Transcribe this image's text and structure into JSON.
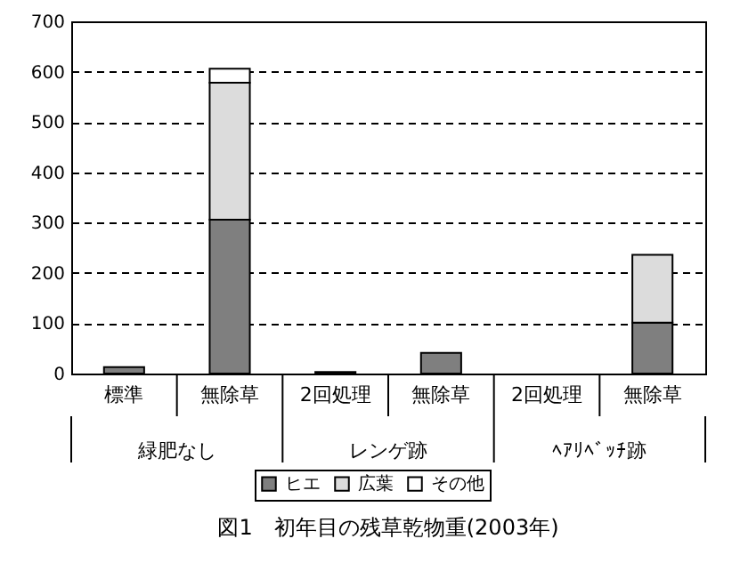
{
  "chart_data": {
    "type": "bar",
    "title": "図1　初年目の残草乾物重(2003年)",
    "categories": [
      "標準",
      "無除草",
      "2回処理",
      "無除草",
      "2回処理",
      "無除草"
    ],
    "annotations": [
      "緑肥なし",
      "レンゲ跡",
      "ﾍｱﾘﾍﾞｯﾁ跡"
    ],
    "stacked": true,
    "series": [
      {
        "name": "ヒエ",
        "color": "#7f7f7f",
        "values": [
          13,
          306,
          3,
          41,
          0,
          101
        ]
      },
      {
        "name": "広葉",
        "color": "#dcdcdc",
        "values": [
          0,
          272,
          0,
          0,
          0,
          135
        ]
      },
      {
        "name": "その他",
        "color": "#ffffff",
        "values": [
          0,
          28,
          0,
          0,
          0,
          0
        ]
      }
    ],
    "ylim": [
      0,
      700
    ],
    "yticks": [
      0,
      100,
      200,
      300,
      400,
      500,
      600,
      700
    ],
    "grid": "y",
    "legend": "bottom"
  }
}
